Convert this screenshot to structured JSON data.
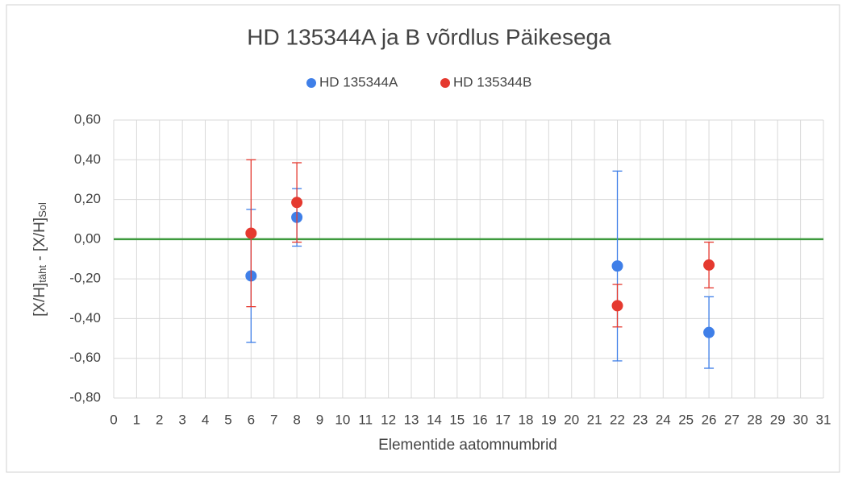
{
  "chart_data": {
    "type": "scatter",
    "title": "HD 135344A ja B võrdlus Päikesega",
    "xlabel": "Elementide aatomnumbrid",
    "ylabel_parts": [
      "[X/H]",
      "täht",
      " - [X/H]",
      "Sol"
    ],
    "legend": "top",
    "grid": true,
    "xlim": [
      0,
      31
    ],
    "xticks": [
      0,
      1,
      2,
      3,
      4,
      5,
      6,
      7,
      8,
      9,
      10,
      11,
      12,
      13,
      14,
      15,
      16,
      17,
      18,
      19,
      20,
      21,
      22,
      23,
      24,
      25,
      26,
      27,
      28,
      29,
      30,
      31
    ],
    "ylim": [
      -0.8,
      0.6
    ],
    "yticks": [
      {
        "value": -0.8,
        "label": "-0,80"
      },
      {
        "value": -0.6,
        "label": "-0,60"
      },
      {
        "value": -0.4,
        "label": "-0,40"
      },
      {
        "value": -0.2,
        "label": "-0,20"
      },
      {
        "value": 0,
        "label": "0,00"
      },
      {
        "value": 0.2,
        "label": "0,20"
      },
      {
        "value": 0.4,
        "label": "0,40"
      },
      {
        "value": 0.6,
        "label": "0,60"
      }
    ],
    "reference_line": {
      "value": 0,
      "color": "#3d9a3d"
    },
    "series": [
      {
        "name": "HD 135344A",
        "color": "#3f7fe8",
        "x": [
          6,
          8,
          22,
          26
        ],
        "values": [
          -0.185,
          0.11,
          -0.135,
          -0.47
        ],
        "errors": [
          0.335,
          0.145,
          0.478,
          0.18
        ]
      },
      {
        "name": "HD 135344B",
        "color": "#e5392f",
        "x": [
          6,
          8,
          22,
          26
        ],
        "values": [
          0.03,
          0.185,
          -0.335,
          -0.13
        ],
        "errors": [
          0.37,
          0.2,
          0.107,
          0.115
        ]
      }
    ]
  }
}
